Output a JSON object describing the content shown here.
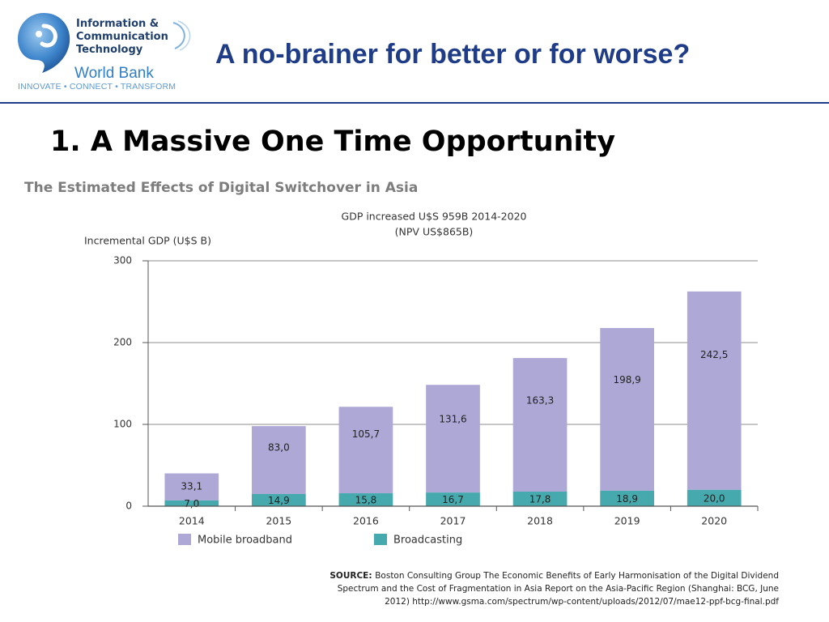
{
  "logo": {
    "line1": "Information &",
    "line2": "Communication",
    "line3": "Technology",
    "org": "World Bank",
    "tagline": "INNOVATE • CONNECT • TRANSFORM"
  },
  "slide": {
    "title": "A no-brainer for better or for worse?",
    "heading": "1.  A Massive One Time Opportunity"
  },
  "colors": {
    "mobile_broadband": "#ada8d6",
    "broadcasting": "#45a9ad",
    "title_blue": "#1f3c88"
  },
  "chart_data": {
    "type": "bar",
    "stacked": true,
    "title": "The Estimated Effects of Digital Switchover in Asia",
    "annotation_lines": [
      "GDP increased U$S 959B 2014-2020",
      "(NPV US$865B)"
    ],
    "ylabel": "Incremental GDP (U$S B)",
    "xlabel": "",
    "ylim": [
      0,
      300
    ],
    "yticks": [
      0,
      100,
      200,
      300
    ],
    "grid": true,
    "legend_position": "bottom-left",
    "categories": [
      "2014",
      "2015",
      "2016",
      "2017",
      "2018",
      "2019",
      "2020"
    ],
    "series": [
      {
        "name": "Broadcasting",
        "values": [
          7.0,
          14.9,
          15.8,
          16.7,
          17.8,
          18.9,
          20.0
        ],
        "labels": [
          "7,0",
          "14,9",
          "15,8",
          "16,7",
          "17,8",
          "18,9",
          "20,0"
        ]
      },
      {
        "name": "Mobile broadband",
        "values": [
          33.1,
          83.0,
          105.7,
          131.6,
          163.3,
          198.9,
          242.5
        ],
        "labels": [
          "33,1",
          "83,0",
          "105,7",
          "131,6",
          "163,3",
          "198,9",
          "242,5"
        ]
      }
    ],
    "legend": [
      "Mobile broadband",
      "Broadcasting"
    ],
    "source_label": "SOURCE:",
    "source_lines": [
      "Boston Consulting Group The Economic Benefits of Early Harmonisation of the Digital Dividend",
      "Spectrum and the Cost of Fragmentation in Asia Report on the Asia-Pacific Region (Shanghai: BCG, June",
      "2012) http://www.gsma.com/spectrum/wp-content/uploads/2012/07/mae12-ppf-bcg-final.pdf"
    ]
  }
}
